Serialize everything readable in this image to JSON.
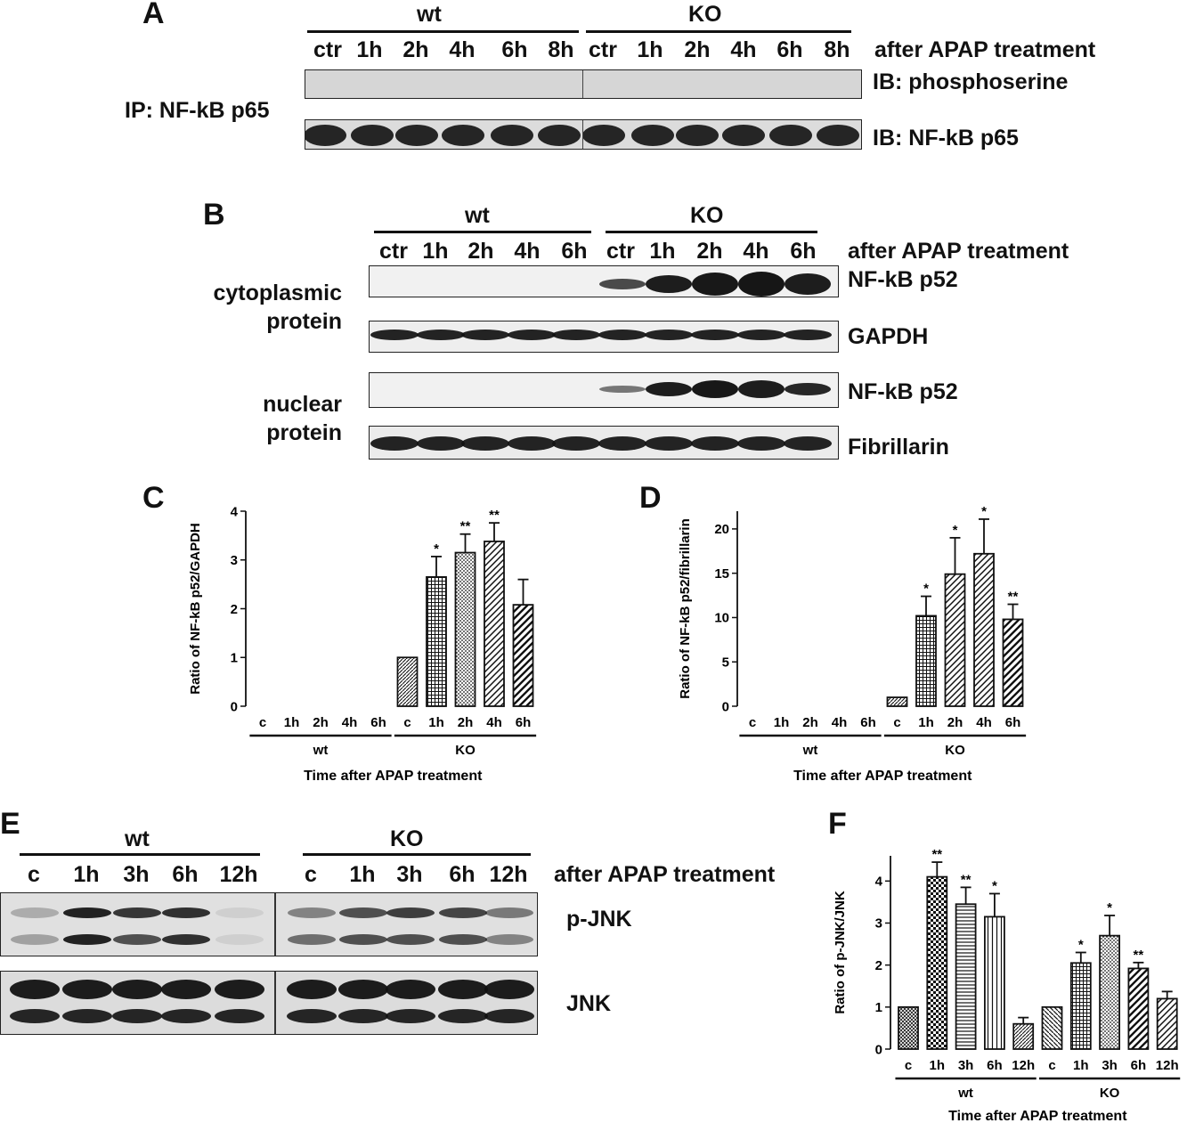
{
  "panels": {
    "A": {
      "letter": "A",
      "groups": [
        "wt",
        "KO"
      ],
      "lanes": [
        "ctr",
        "1h",
        "2h",
        "4h",
        "6h",
        "8h",
        "ctr",
        "1h",
        "2h",
        "4h",
        "6h",
        "8h"
      ],
      "treatment_label": "after APAP treatment",
      "ip_label": "IP: NF-kB p65",
      "blots": [
        "IB: phosphoserine",
        "IB: NF-kB p65"
      ]
    },
    "B": {
      "letter": "B",
      "groups": [
        "wt",
        "KO"
      ],
      "lanes": [
        "ctr",
        "1h",
        "2h",
        "4h",
        "6h",
        "ctr",
        "1h",
        "2h",
        "4h",
        "6h"
      ],
      "treatment_label": "after APAP treatment",
      "fractions": [
        "cytoplasmic protein",
        "nuclear protein"
      ],
      "fraction_lines": [
        [
          "cytoplasmic",
          "protein"
        ],
        [
          "nuclear",
          "protein"
        ]
      ],
      "blots": [
        "NF-kB p52",
        "GAPDH",
        "NF-kB p52",
        "Fibrillarin"
      ]
    },
    "E": {
      "letter": "E",
      "groups": [
        "wt",
        "KO"
      ],
      "lanes": [
        "c",
        "1h",
        "3h",
        "6h",
        "12h",
        "c",
        "1h",
        "3h",
        "6h",
        "12h"
      ],
      "treatment_label": "after APAP treatment",
      "blots": [
        "p-JNK",
        "JNK"
      ]
    }
  },
  "chart_data": [
    {
      "panel": "C",
      "type": "bar",
      "categories": [
        "c",
        "1h",
        "2h",
        "4h",
        "6h",
        "c",
        "1h",
        "2h",
        "4h",
        "6h"
      ],
      "groups": [
        {
          "name": "wt",
          "count": 5
        },
        {
          "name": "KO",
          "count": 5
        }
      ],
      "values": [
        0,
        0,
        0,
        0,
        0,
        1.0,
        2.65,
        3.15,
        3.38,
        2.08
      ],
      "errors": [
        0,
        0,
        0,
        0,
        0,
        0,
        0.42,
        0.38,
        0.38,
        0.52
      ],
      "significance": [
        "",
        "",
        "",
        "",
        "",
        "",
        "*",
        "**",
        "**",
        ""
      ],
      "patterns": [
        "none",
        "none",
        "none",
        "none",
        "none",
        "diag-fine",
        "grid",
        "dots",
        "diag-wide",
        "diag-bold"
      ],
      "ylabel": "Ratio of NF-kB p52/GAPDH",
      "xlabel": "Time after APAP treatment",
      "ylim": [
        0,
        4
      ],
      "yticks": [
        0,
        1,
        2,
        3,
        4
      ]
    },
    {
      "panel": "D",
      "type": "bar",
      "categories": [
        "c",
        "1h",
        "2h",
        "4h",
        "6h",
        "c",
        "1h",
        "2h",
        "4h",
        "6h"
      ],
      "groups": [
        {
          "name": "wt",
          "count": 5
        },
        {
          "name": "KO",
          "count": 5
        }
      ],
      "values": [
        0,
        0,
        0,
        0,
        0,
        1.0,
        10.2,
        14.9,
        17.2,
        9.8
      ],
      "errors": [
        0,
        0,
        0,
        0,
        0,
        0,
        2.2,
        4.1,
        3.9,
        1.7
      ],
      "significance": [
        "",
        "",
        "",
        "",
        "",
        "",
        "*",
        "*",
        "*",
        "**"
      ],
      "patterns": [
        "none",
        "none",
        "none",
        "none",
        "none",
        "diag-fine",
        "grid",
        "diag-wide",
        "diag-wide",
        "diag-bold"
      ],
      "ylabel": "Ratio of NF-kB p52/fibrillarin",
      "xlabel": "Time after APAP treatment",
      "ylim": [
        0,
        22
      ],
      "yticks": [
        0,
        5,
        10,
        15,
        20
      ]
    },
    {
      "panel": "F",
      "type": "bar",
      "categories": [
        "c",
        "1h",
        "3h",
        "6h",
        "12h",
        "c",
        "1h",
        "3h",
        "6h",
        "12h"
      ],
      "groups": [
        {
          "name": "wt",
          "count": 5
        },
        {
          "name": "KO",
          "count": 5
        }
      ],
      "values": [
        1.0,
        4.1,
        3.45,
        3.15,
        0.6,
        1.0,
        2.05,
        2.7,
        1.92,
        1.2
      ],
      "errors": [
        0,
        0.35,
        0.4,
        0.55,
        0.15,
        0,
        0.25,
        0.48,
        0.14,
        0.17
      ],
      "significance": [
        "",
        "**",
        "**",
        "*",
        "",
        "",
        "*",
        "*",
        "**",
        ""
      ],
      "patterns": [
        "crosshatch",
        "checker",
        "hlines",
        "vlines",
        "diag-fine",
        "diag-back",
        "grid",
        "dots",
        "diag-bold",
        "diag-wide"
      ],
      "ylabel": "Ratio of p-JNK/JNK",
      "xlabel": "Time after APAP treatment",
      "ylim": [
        0,
        4.6
      ],
      "yticks": [
        0,
        1,
        2,
        3,
        4
      ]
    }
  ]
}
